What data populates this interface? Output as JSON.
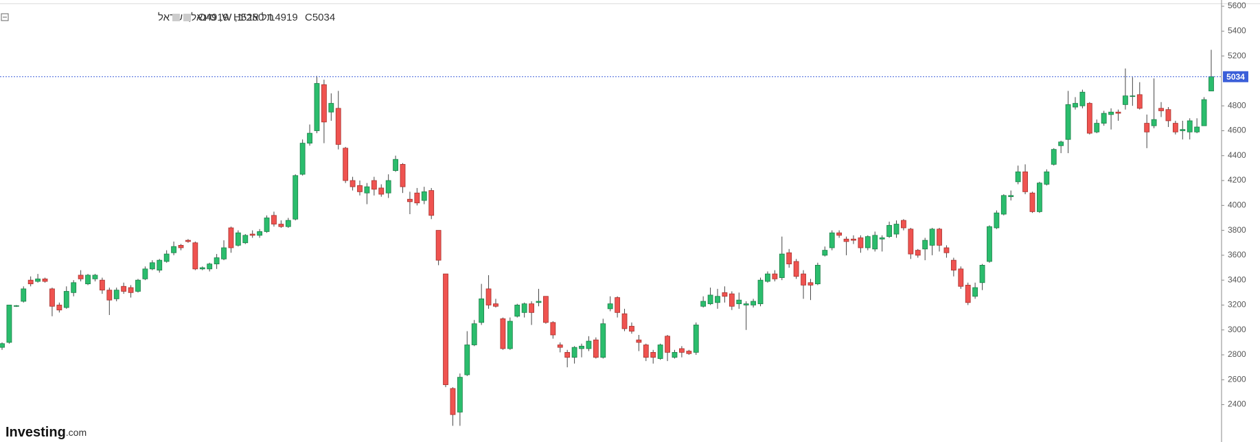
{
  "chart_data": {
    "type": "candlestick",
    "title": "תל אביב, W, סינאל, ישראל",
    "ohlc_labels": [
      "O4919",
      "H5250",
      "L4919",
      "C5034"
    ],
    "last_price": 5034,
    "logo": [
      "Investing",
      ".com"
    ],
    "up_color": "#2bbd6d",
    "down_color": "#ef5350",
    "line_color": "#3b5fd9",
    "ylim": [
      2100,
      5650
    ],
    "yticks": [
      2400,
      2600,
      2800,
      3000,
      3200,
      3400,
      3600,
      3800,
      4000,
      4200,
      4400,
      4600,
      4800,
      5200,
      5400,
      5600
    ],
    "open": [
      2860,
      2900,
      3190,
      3230,
      3400,
      3390,
      3410,
      3330,
      3200,
      3180,
      3300,
      3440,
      3370,
      3410,
      3400,
      3320,
      3250,
      3350,
      3340,
      3310,
      3410,
      3490,
      3480,
      3550,
      3620,
      3680,
      3720,
      3700,
      3490,
      3490,
      3530,
      3570,
      3820,
      3680,
      3700,
      3770,
      3760,
      3790,
      3920,
      3850,
      3830,
      3890,
      4250,
      4500,
      4600,
      4970,
      4750,
      4780,
      4460,
      4200,
      4160,
      4100,
      4200,
      4140,
      4100,
      4280,
      4330,
      4050,
      4100,
      4040,
      4120,
      3800,
      3450,
      2530,
      2340,
      2640,
      2880,
      3060,
      3330,
      3210,
      3090,
      2850,
      3110,
      3140,
      3210,
      3220,
      3270,
      3060,
      2880,
      2820,
      2780,
      2850,
      2850,
      2920,
      2780,
      3170,
      3260,
      3130,
      3030,
      2920,
      2880,
      2820,
      2770,
      2950,
      2780,
      2850,
      2830,
      2820,
      3190,
      3210,
      3220,
      3300,
      3290,
      3210,
      3200,
      3200,
      3210,
      3390,
      3450,
      3420,
      3620,
      3550,
      3450,
      3380,
      3370,
      3600,
      3660,
      3780,
      3730,
      3730,
      3740,
      3660,
      3650,
      3730,
      3750,
      3770,
      3880,
      3810,
      3640,
      3650,
      3680,
      3810,
      3660,
      3560,
      3490,
      3360,
      3270,
      3380,
      3550,
      3820,
      3930,
      4070,
      4190,
      4270,
      4100,
      3950,
      4170,
      4330,
      4480,
      4530,
      4790,
      4800,
      4820,
      4590,
      4660,
      4730,
      4750,
      4810,
      4880,
      4890,
      4660,
      4640,
      4780,
      4770,
      4660,
      4600,
      4590,
      4590,
      4640,
      4919
    ],
    "high": [
      2900,
      3200,
      3200,
      3350,
      3430,
      3450,
      3420,
      3340,
      3220,
      3350,
      3400,
      3480,
      3450,
      3450,
      3420,
      3340,
      3340,
      3380,
      3360,
      3410,
      3510,
      3560,
      3570,
      3640,
      3710,
      3690,
      3730,
      3710,
      3510,
      3540,
      3610,
      3720,
      3830,
      3800,
      3770,
      3800,
      3810,
      3920,
      3950,
      3880,
      3900,
      4250,
      4530,
      4650,
      5040,
      5010,
      4900,
      4920,
      4470,
      4230,
      4200,
      4180,
      4230,
      4170,
      4250,
      4400,
      4340,
      4110,
      4140,
      4150,
      4140,
      3800,
      3450,
      2540,
      2650,
      2990,
      3080,
      3370,
      3440,
      3250,
      3100,
      3100,
      3210,
      3220,
      3230,
      3330,
      3270,
      3070,
      2900,
      2840,
      2870,
      2890,
      2950,
      2940,
      3090,
      3270,
      3270,
      3170,
      3060,
      2960,
      2890,
      2840,
      2890,
      2960,
      2840,
      2870,
      2840,
      3060,
      3270,
      3340,
      3330,
      3350,
      3310,
      3300,
      3230,
      3250,
      3420,
      3470,
      3480,
      3750,
      3650,
      3570,
      3480,
      3410,
      3540,
      3670,
      3800,
      3800,
      3750,
      3760,
      3760,
      3760,
      3790,
      3760,
      3870,
      3880,
      3890,
      3820,
      3650,
      3740,
      3820,
      3820,
      3680,
      3580,
      3510,
      3380,
      3380,
      3530,
      3840,
      3960,
      4090,
      4120,
      4320,
      4330,
      4110,
      4190,
      4290,
      4460,
      4520,
      4920,
      4870,
      4930,
      4830,
      4690,
      4760,
      4780,
      4770,
      5100,
      5030,
      4990,
      4730,
      5020,
      4830,
      4790,
      4680,
      4680,
      4700,
      4700,
      4870,
      5250
    ],
    "low": [
      2840,
      2890,
      3185,
      3220,
      3350,
      3380,
      3380,
      3110,
      3140,
      3170,
      3270,
      3390,
      3360,
      3390,
      3290,
      3120,
      3230,
      3290,
      3260,
      3300,
      3400,
      3480,
      3460,
      3540,
      3600,
      3640,
      3700,
      3480,
      3480,
      3470,
      3490,
      3560,
      3620,
      3670,
      3690,
      3740,
      3740,
      3780,
      3830,
      3820,
      3820,
      3880,
      4240,
      4480,
      4580,
      4500,
      4680,
      4450,
      4180,
      4120,
      4080,
      4010,
      4080,
      4070,
      4060,
      4270,
      4100,
      3930,
      4000,
      4010,
      3890,
      3520,
      2540,
      2230,
      2230,
      2630,
      2870,
      3040,
      3170,
      3180,
      2840,
      2840,
      3100,
      3100,
      3040,
      3190,
      3050,
      2930,
      2820,
      2700,
      2730,
      2780,
      2830,
      2770,
      2770,
      3150,
      3100,
      2990,
      2970,
      2830,
      2750,
      2730,
      2760,
      2750,
      2770,
      2780,
      2800,
      2800,
      3180,
      3200,
      3170,
      3220,
      3160,
      3170,
      3000,
      3180,
      3190,
      3380,
      3390,
      3400,
      3500,
      3410,
      3250,
      3240,
      3360,
      3590,
      3640,
      3740,
      3600,
      3690,
      3620,
      3640,
      3630,
      3630,
      3740,
      3740,
      3800,
      3570,
      3580,
      3560,
      3600,
      3630,
      3580,
      3430,
      3330,
      3200,
      3250,
      3320,
      3540,
      3810,
      3920,
      4040,
      4170,
      4090,
      3940,
      3940,
      4160,
      4320,
      4420,
      4420,
      4770,
      4780,
      4570,
      4580,
      4640,
      4610,
      4680,
      4770,
      4800,
      4770,
      4460,
      4620,
      4710,
      4630,
      4570,
      4530,
      4530,
      4580,
      4640,
      4919
    ],
    "close": [
      2890,
      3200,
      3195,
      3330,
      3370,
      3410,
      3390,
      3190,
      3160,
      3310,
      3380,
      3410,
      3440,
      3440,
      3320,
      3240,
      3320,
      3310,
      3300,
      3400,
      3490,
      3540,
      3560,
      3610,
      3670,
      3660,
      3710,
      3490,
      3500,
      3530,
      3580,
      3660,
      3660,
      3780,
      3760,
      3760,
      3790,
      3900,
      3850,
      3830,
      3880,
      4240,
      4500,
      4580,
      4980,
      4670,
      4820,
      4490,
      4200,
      4150,
      4110,
      4150,
      4130,
      4090,
      4200,
      4370,
      4150,
      4030,
      4020,
      4110,
      3920,
      3560,
      2560,
      2320,
      2620,
      2880,
      3050,
      3250,
      3200,
      3190,
      2850,
      3070,
      3200,
      3210,
      3140,
      3230,
      3060,
      2960,
      2860,
      2780,
      2860,
      2870,
      2910,
      2780,
      3050,
      3210,
      3140,
      3010,
      2990,
      2900,
      2780,
      2780,
      2880,
      2820,
      2820,
      2820,
      2810,
      3040,
      3230,
      3280,
      3270,
      3270,
      3190,
      3240,
      3210,
      3230,
      3400,
      3450,
      3410,
      3610,
      3530,
      3430,
      3360,
      3360,
      3520,
      3640,
      3780,
      3760,
      3710,
      3720,
      3660,
      3750,
      3760,
      3740,
      3840,
      3850,
      3820,
      3610,
      3600,
      3720,
      3810,
      3680,
      3620,
      3480,
      3350,
      3220,
      3340,
      3520,
      3830,
      3940,
      4080,
      4080,
      4270,
      4110,
      3950,
      4180,
      4270,
      4450,
      4510,
      4810,
      4820,
      4910,
      4580,
      4660,
      4740,
      4750,
      4740,
      4880,
      4880,
      4780,
      4590,
      4690,
      4760,
      4680,
      4590,
      4610,
      4680,
      4630,
      4850,
      5034
    ]
  }
}
